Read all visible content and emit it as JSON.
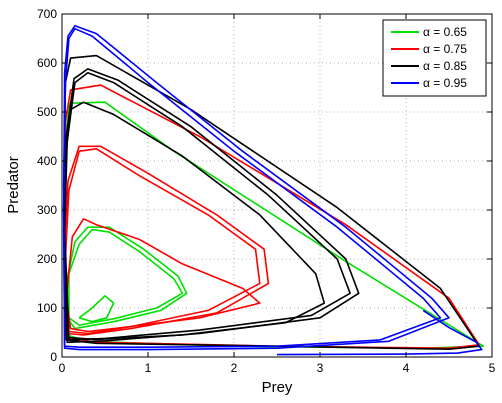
{
  "chart_data": {
    "type": "line",
    "title": "",
    "xlabel": "Prey",
    "ylabel": "Predator",
    "xlim": [
      0,
      5
    ],
    "ylim": [
      0,
      700
    ],
    "xticks": [
      "0",
      "1",
      "2",
      "3",
      "4",
      "5"
    ],
    "yticks": [
      "0",
      "100",
      "200",
      "300",
      "400",
      "500",
      "600",
      "700"
    ],
    "grid": true,
    "legend_position": "top-right",
    "series": [
      {
        "name": "α = 0.65",
        "color": "#00e000",
        "loops": [
          [
            [
              0.2,
              80
            ],
            [
              0.35,
              100
            ],
            [
              0.5,
              125
            ],
            [
              0.6,
              110
            ],
            [
              0.52,
              80
            ],
            [
              0.35,
              72
            ],
            [
              0.2,
              80
            ]
          ],
          [
            [
              0.08,
              170
            ],
            [
              0.2,
              230
            ],
            [
              0.35,
              260
            ],
            [
              0.55,
              255
            ],
            [
              0.9,
              215
            ],
            [
              1.3,
              160
            ],
            [
              1.4,
              130
            ],
            [
              1.1,
              100
            ],
            [
              0.6,
              78
            ],
            [
              0.2,
              65
            ],
            [
              0.08,
              80
            ],
            [
              0.08,
              170
            ]
          ],
          [
            [
              0.06,
              160
            ],
            [
              0.15,
              235
            ],
            [
              0.3,
              265
            ],
            [
              0.55,
              265
            ],
            [
              0.95,
              220
            ],
            [
              1.35,
              165
            ],
            [
              1.45,
              130
            ],
            [
              1.15,
              95
            ],
            [
              0.6,
              72
            ],
            [
              0.15,
              58
            ],
            [
              0.06,
              80
            ],
            [
              0.06,
              160
            ]
          ],
          [
            [
              0.02,
              250
            ],
            [
              0.04,
              450
            ],
            [
              0.09,
              518
            ],
            [
              0.5,
              520
            ],
            [
              1.3,
              420
            ],
            [
              3.3,
              195
            ],
            [
              4.9,
              22
            ],
            [
              4.2,
              18
            ],
            [
              2.0,
              22
            ],
            [
              0.3,
              32
            ],
            [
              0.05,
              45
            ],
            [
              0.03,
              100
            ],
            [
              0.02,
              250
            ]
          ]
        ]
      },
      {
        "name": "α = 0.75",
        "color": "#ff0000",
        "loops": [
          [
            [
              0.05,
              120
            ],
            [
              0.12,
              245
            ],
            [
              0.25,
              282
            ],
            [
              0.4,
              270
            ],
            [
              0.9,
              240
            ],
            [
              1.4,
              190
            ],
            [
              2.1,
              140
            ],
            [
              2.3,
              110
            ],
            [
              1.6,
              80
            ],
            [
              0.8,
              62
            ],
            [
              0.3,
              52
            ],
            [
              0.1,
              58
            ],
            [
              0.05,
              120
            ]
          ],
          [
            [
              0.04,
              200
            ],
            [
              0.08,
              340
            ],
            [
              0.2,
              420
            ],
            [
              0.4,
              425
            ],
            [
              0.9,
              370
            ],
            [
              1.7,
              290
            ],
            [
              2.25,
              220
            ],
            [
              2.3,
              150
            ],
            [
              1.7,
              95
            ],
            [
              0.8,
              62
            ],
            [
              0.3,
              48
            ],
            [
              0.08,
              52
            ],
            [
              0.04,
              200
            ]
          ],
          [
            [
              0.03,
              230
            ],
            [
              0.07,
              360
            ],
            [
              0.2,
              430
            ],
            [
              0.45,
              430
            ],
            [
              1.0,
              375
            ],
            [
              1.8,
              290
            ],
            [
              2.35,
              220
            ],
            [
              2.4,
              150
            ],
            [
              1.8,
              90
            ],
            [
              0.8,
              58
            ],
            [
              0.25,
              45
            ],
            [
              0.06,
              48
            ],
            [
              0.03,
              230
            ]
          ],
          [
            [
              0.02,
              300
            ],
            [
              0.04,
              480
            ],
            [
              0.1,
              545
            ],
            [
              0.45,
              555
            ],
            [
              1.6,
              450
            ],
            [
              3.3,
              270
            ],
            [
              4.5,
              120
            ],
            [
              4.85,
              25
            ],
            [
              4.5,
              18
            ],
            [
              2.5,
              22
            ],
            [
              0.4,
              30
            ],
            [
              0.05,
              40
            ],
            [
              0.02,
              300
            ]
          ]
        ]
      },
      {
        "name": "α = 0.85",
        "color": "#000000",
        "loops": [
          [
            [
              0.03,
              260
            ],
            [
              0.06,
              440
            ],
            [
              0.15,
              560
            ],
            [
              0.3,
              580
            ],
            [
              0.6,
              560
            ],
            [
              1.4,
              470
            ],
            [
              2.4,
              330
            ],
            [
              3.2,
              200
            ],
            [
              3.35,
              130
            ],
            [
              2.9,
              85
            ],
            [
              1.6,
              55
            ],
            [
              0.5,
              38
            ],
            [
              0.08,
              35
            ],
            [
              0.03,
              260
            ]
          ],
          [
            [
              0.02,
              260
            ],
            [
              0.05,
              450
            ],
            [
              0.14,
              568
            ],
            [
              0.3,
              588
            ],
            [
              0.65,
              565
            ],
            [
              1.5,
              470
            ],
            [
              2.5,
              330
            ],
            [
              3.3,
              200
            ],
            [
              3.45,
              130
            ],
            [
              3.0,
              80
            ],
            [
              1.6,
              48
            ],
            [
              0.5,
              33
            ],
            [
              0.06,
              30
            ],
            [
              0.02,
              260
            ]
          ],
          [
            [
              0.03,
              250
            ],
            [
              0.05,
              420
            ],
            [
              0.1,
              505
            ],
            [
              0.25,
              520
            ],
            [
              0.6,
              495
            ],
            [
              1.4,
              410
            ],
            [
              2.3,
              290
            ],
            [
              2.95,
              170
            ],
            [
              3.05,
              110
            ],
            [
              2.6,
              70
            ],
            [
              1.4,
              45
            ],
            [
              0.4,
              36
            ],
            [
              0.05,
              40
            ],
            [
              0.03,
              250
            ]
          ],
          [
            [
              0.02,
              350
            ],
            [
              0.04,
              560
            ],
            [
              0.1,
              610
            ],
            [
              0.4,
              615
            ],
            [
              1.5,
              505
            ],
            [
              3.2,
              305
            ],
            [
              4.4,
              140
            ],
            [
              4.85,
              22
            ],
            [
              4.5,
              16
            ],
            [
              2.5,
              22
            ],
            [
              0.4,
              28
            ],
            [
              0.05,
              35
            ],
            [
              0.02,
              350
            ]
          ]
        ]
      },
      {
        "name": "α = 0.95",
        "color": "#0000ff",
        "loops": [
          [
            [
              0.02,
              300
            ],
            [
              0.04,
              560
            ],
            [
              0.08,
              650
            ],
            [
              0.15,
              670
            ],
            [
              0.35,
              655
            ],
            [
              1.0,
              560
            ],
            [
              2.0,
              420
            ],
            [
              3.2,
              265
            ],
            [
              4.2,
              120
            ],
            [
              4.4,
              80
            ],
            [
              3.7,
              35
            ],
            [
              2.5,
              22
            ],
            [
              1.0,
              20
            ],
            [
              0.2,
              20
            ],
            [
              0.03,
              22
            ],
            [
              0.02,
              300
            ]
          ],
          [
            [
              0.02,
              300
            ],
            [
              0.03,
              580
            ],
            [
              0.07,
              655
            ],
            [
              0.15,
              676
            ],
            [
              0.4,
              660
            ],
            [
              1.1,
              560
            ],
            [
              2.1,
              420
            ],
            [
              3.3,
              265
            ],
            [
              4.3,
              120
            ],
            [
              4.5,
              80
            ],
            [
              3.8,
              32
            ],
            [
              2.5,
              18
            ],
            [
              1.0,
              15
            ],
            [
              0.2,
              15
            ],
            [
              0.03,
              18
            ],
            [
              0.02,
              300
            ]
          ],
          [
            [
              2.5,
              5
            ],
            [
              4.0,
              6
            ],
            [
              4.6,
              8
            ],
            [
              4.88,
              15
            ],
            [
              4.82,
              30
            ],
            [
              4.5,
              60
            ],
            [
              4.2,
              95
            ]
          ]
        ]
      }
    ]
  }
}
